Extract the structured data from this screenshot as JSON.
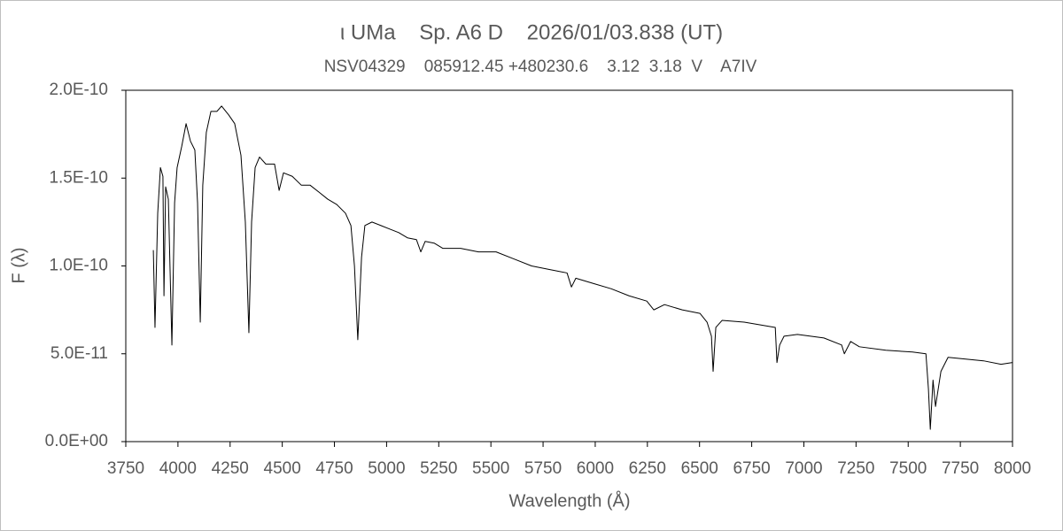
{
  "chart_data": {
    "type": "line",
    "title": "ι UMa    Sp. A6 D    2026/01/03.838 (UT)",
    "subtitle": "NSV04329    085912.45 +480230.6    3.12  3.18  V    A7IV",
    "x_label": "Wavelength (Å)",
    "y_label": "F (λ)",
    "color": "#000000",
    "grid": false,
    "xlim": [
      3750,
      8000
    ],
    "xticks": [
      3750,
      4000,
      4250,
      4500,
      4750,
      5000,
      5250,
      5500,
      5750,
      6000,
      6250,
      6500,
      6750,
      7000,
      7250,
      7500,
      7750,
      8000
    ],
    "ylim": [
      0,
      2e-10
    ],
    "yticks": [
      {
        "value": 0,
        "label": "0.0E+00"
      },
      {
        "value": 5e-11,
        "label": "5.0E-11"
      },
      {
        "value": 1e-10,
        "label": "1.0E-10"
      },
      {
        "value": 1.5e-10,
        "label": "1.5E-10"
      },
      {
        "value": 2e-10,
        "label": "2.0E-10"
      }
    ],
    "x": [
      3882,
      3890,
      3903,
      3916,
      3928,
      3933,
      3941,
      3954,
      3971,
      3984,
      3996,
      4018,
      4039,
      4060,
      4081,
      4094,
      4107,
      4119,
      4136,
      4158,
      4187,
      4209,
      4243,
      4272,
      4302,
      4323,
      4340,
      4353,
      4370,
      4391,
      4421,
      4463,
      4485,
      4506,
      4548,
      4591,
      4633,
      4676,
      4718,
      4761,
      4803,
      4829,
      4846,
      4862,
      4880,
      4896,
      4930,
      4973,
      5015,
      5058,
      5100,
      5143,
      5164,
      5185,
      5228,
      5270,
      5355,
      5440,
      5525,
      5610,
      5695,
      5780,
      5865,
      5886,
      5907,
      5992,
      6077,
      6162,
      6247,
      6281,
      6332,
      6417,
      6502,
      6536,
      6557,
      6565,
      6578,
      6608,
      6714,
      6863,
      6871,
      6884,
      6905,
      6969,
      7096,
      7181,
      7194,
      7224,
      7266,
      7393,
      7521,
      7585,
      7597,
      7606,
      7619,
      7631,
      7657,
      7691,
      7776,
      7861,
      7945,
      8000
    ],
    "values": [
      1.09e-10,
      6.5e-11,
      1.3e-10,
      1.56e-10,
      1.51e-10,
      8.3e-11,
      1.45e-10,
      1.38e-10,
      5.5e-11,
      1.36e-10,
      1.56e-10,
      1.68e-10,
      1.81e-10,
      1.71e-10,
      1.66e-10,
      1.36e-10,
      6.8e-11,
      1.46e-10,
      1.76e-10,
      1.88e-10,
      1.88e-10,
      1.91e-10,
      1.86e-10,
      1.81e-10,
      1.63e-10,
      1.25e-10,
      6.2e-11,
      1.25e-10,
      1.56e-10,
      1.62e-10,
      1.58e-10,
      1.58e-10,
      1.43e-10,
      1.53e-10,
      1.51e-10,
      1.46e-10,
      1.46e-10,
      1.42e-10,
      1.38e-10,
      1.35e-10,
      1.3e-10,
      1.23e-10,
      1e-10,
      5.8e-11,
      1.05e-10,
      1.23e-10,
      1.25e-10,
      1.23e-10,
      1.21e-10,
      1.19e-10,
      1.16e-10,
      1.15e-10,
      1.08e-10,
      1.14e-10,
      1.13e-10,
      1.1e-10,
      1.1e-10,
      1.08e-10,
      1.08e-10,
      1.04e-10,
      1e-10,
      9.8e-11,
      9.6e-11,
      8.8e-11,
      9.3e-11,
      9e-11,
      8.7e-11,
      8.3e-11,
      8e-11,
      7.5e-11,
      7.8e-11,
      7.5e-11,
      7.3e-11,
      6.8e-11,
      6e-11,
      4e-11,
      6.5e-11,
      6.9e-11,
      6.8e-11,
      6.5e-11,
      4.5e-11,
      5.5e-11,
      6e-11,
      6.1e-11,
      5.9e-11,
      5.5e-11,
      5e-11,
      5.7e-11,
      5.4e-11,
      5.2e-11,
      5.1e-11,
      5e-11,
      3e-11,
      7e-12,
      3.5e-11,
      2e-11,
      4e-11,
      4.8e-11,
      4.7e-11,
      4.6e-11,
      4.4e-11,
      4.5e-11
    ]
  }
}
